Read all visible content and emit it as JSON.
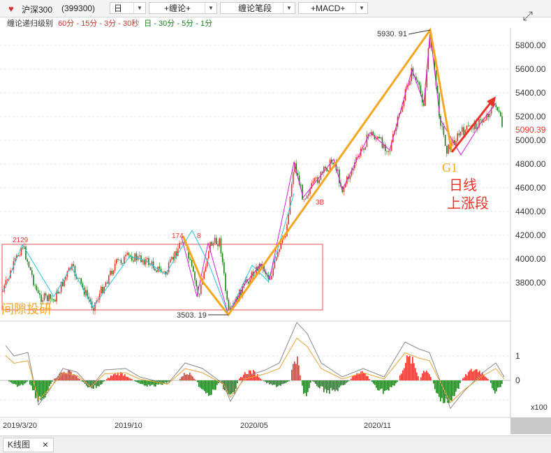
{
  "toolbar": {
    "stock_name": "沪深300",
    "stock_code": "(399300)",
    "period": "日",
    "indicator1": "+缠论+",
    "indicator2": "缠论笔段",
    "indicator3": "+MACD+"
  },
  "subtitle": {
    "label": "缠论递归级别",
    "group1": "60分 - 15分 - 3分 - 30秒",
    "group2": "日 - 30分 - 5分 - 1分"
  },
  "annotations": {
    "peak": "5930. 91",
    "trough": "3503. 19",
    "high_2129": "2129",
    "high_174": "174",
    "high_8": "8",
    "label_3b": "3B",
    "g1": "G1",
    "rise1": "日线",
    "rise2": "上涨段",
    "watermark": "间隙投研",
    "current_price": "5090.39"
  },
  "bottom_tab": {
    "label": "K线图",
    "close": "✕"
  },
  "colors": {
    "up": "#e8322a",
    "down": "#1a7f1a",
    "orange": "#f5a623",
    "magenta": "#d21fd2",
    "cyan": "#26c0e0",
    "red_arrow": "#e8322a",
    "box": "#e05050"
  },
  "chart_data": {
    "type": "candlestick",
    "y_ticks": [
      "5800.00",
      "5600.00",
      "5400.00",
      "5200.00",
      "5000.00",
      "4800.00",
      "4600.00",
      "4400.00",
      "4200.00",
      "4000.00",
      "3800.00"
    ],
    "y_range": [
      3503.19,
      5930.91
    ],
    "x_ticks": [
      "2019/3/20",
      "2019/10",
      "2020/05",
      "2020/11"
    ],
    "macd_ticks": [
      "1",
      "0"
    ],
    "macd_unit": "x100",
    "pivots": [
      {
        "label": "peak",
        "value": 5930.91
      },
      {
        "label": "trough",
        "value": 3503.19
      }
    ]
  }
}
